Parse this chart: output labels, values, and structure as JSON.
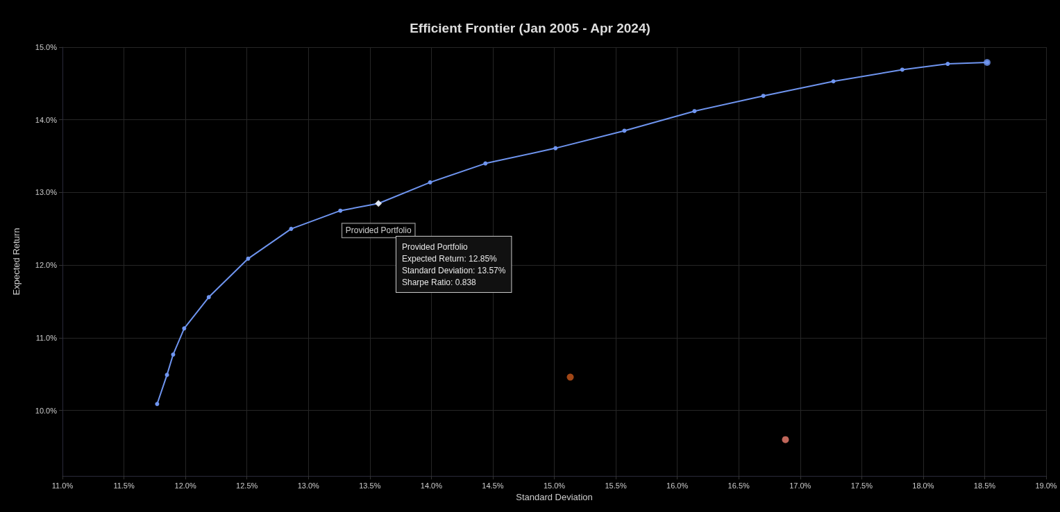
{
  "chart_data": {
    "type": "line",
    "title": "Efficient Frontier (Jan 2005 - Apr 2024)",
    "xlabel": "Standard Deviation",
    "ylabel": "Expected Return",
    "xlim": [
      11,
      19
    ],
    "xticks": [
      {
        "value": 11,
        "label": "11.0%"
      },
      {
        "value": 11.5,
        "label": "11.5%"
      },
      {
        "value": 12,
        "label": "12.0%"
      },
      {
        "value": 12.5,
        "label": "12.5%"
      },
      {
        "value": 13,
        "label": "13.0%"
      },
      {
        "value": 13.5,
        "label": "13.5%"
      },
      {
        "value": 14,
        "label": "14.0%"
      },
      {
        "value": 14.5,
        "label": "14.5%"
      },
      {
        "value": 15,
        "label": "15.0%"
      },
      {
        "value": 15.5,
        "label": "15.5%"
      },
      {
        "value": 16,
        "label": "16.0%"
      },
      {
        "value": 16.5,
        "label": "16.5%"
      },
      {
        "value": 17,
        "label": "17.0%"
      },
      {
        "value": 17.5,
        "label": "17.5%"
      },
      {
        "value": 18,
        "label": "18.0%"
      },
      {
        "value": 18.5,
        "label": "18.5%"
      },
      {
        "value": 19,
        "label": "19.0%"
      }
    ],
    "ylim": [
      9.1,
      15.0
    ],
    "yticks": [
      {
        "value": 10,
        "label": "10.0%"
      },
      {
        "value": 11,
        "label": "11.0%"
      },
      {
        "value": 12,
        "label": "12.0%"
      },
      {
        "value": 13,
        "label": "13.0%"
      },
      {
        "value": 14,
        "label": "14.0%"
      },
      {
        "value": 15,
        "label": "15.0%"
      }
    ],
    "grid": true,
    "legend": false,
    "marker": "circle",
    "line_style": "solid",
    "series": [
      {
        "color": "#6f95f0",
        "x": [
          11.77,
          11.85,
          11.9,
          11.99,
          12.19,
          12.51,
          12.86,
          13.26,
          13.57,
          13.99,
          14.44,
          15.01,
          15.57,
          16.14,
          16.7,
          17.27,
          17.83,
          18.2,
          18.52
        ],
        "values": [
          10.09,
          10.49,
          10.77,
          11.13,
          11.56,
          12.09,
          12.5,
          12.75,
          12.85,
          13.14,
          13.4,
          13.61,
          13.85,
          14.12,
          14.33,
          14.53,
          14.69,
          14.77,
          14.79
        ]
      },
      {
        "type": "scatter",
        "color": "#6f95f0",
        "x": [
          18.52
        ],
        "values": [
          14.79
        ]
      },
      {
        "type": "scatter",
        "color": "#c8581c",
        "x": [
          15.13
        ],
        "values": [
          10.46
        ]
      },
      {
        "type": "scatter",
        "color": "#f08070",
        "x": [
          16.88
        ],
        "values": [
          9.6
        ]
      },
      {
        "type": "scatter",
        "name": "Provided Portfolio",
        "marker": "diamond",
        "color": "#ffffff",
        "x": [
          13.57
        ],
        "values": [
          12.85
        ]
      }
    ],
    "annotations": [
      "Provided Portfolio\nExpected Return: 12.85%\nStandard Deviation: 13.57%\nSharpe Ratio: 0.838"
    ]
  }
}
